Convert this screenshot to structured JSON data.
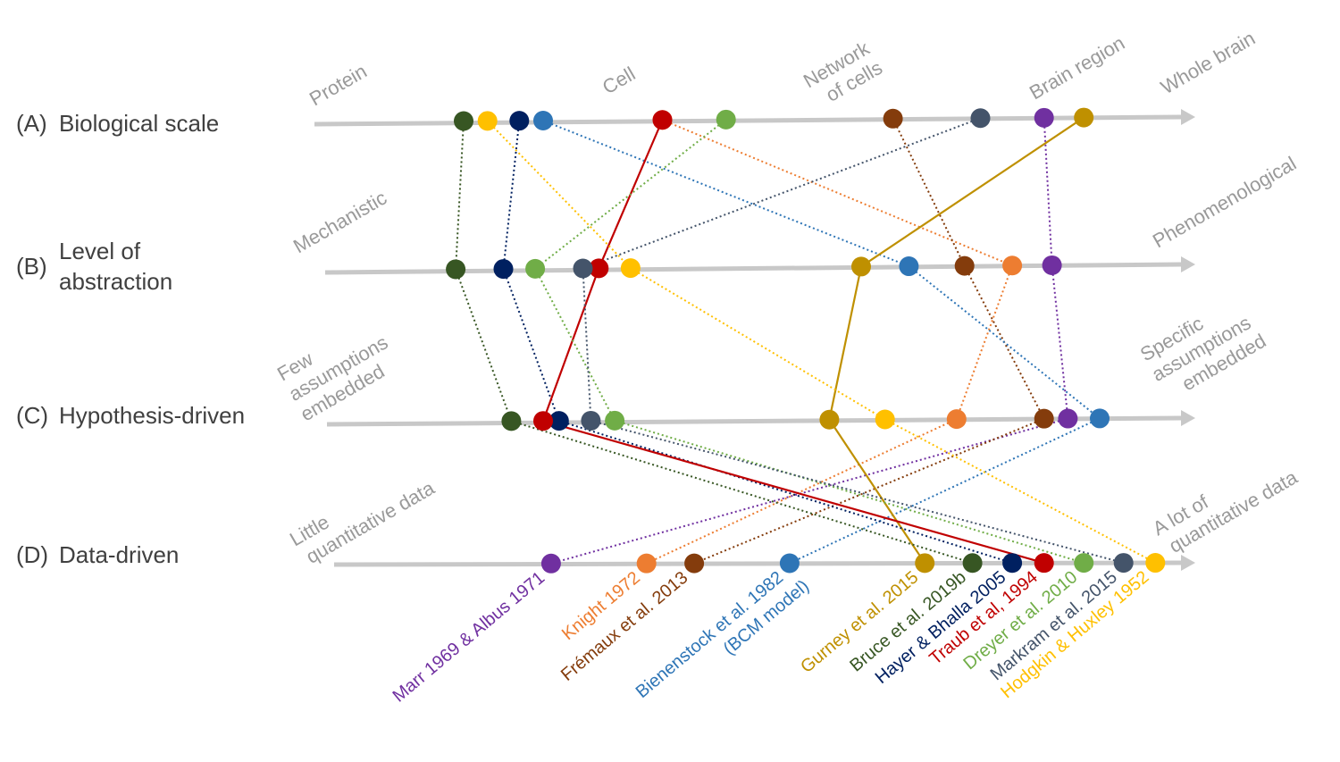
{
  "rows": [
    {
      "id": "A",
      "letter": "(A)",
      "title": [
        "Biological scale"
      ],
      "left_label": [
        "Protein"
      ],
      "right_label": [
        "Whole brain"
      ],
      "middle_labels": [
        {
          "lines": [
            "Cell"
          ]
        },
        {
          "lines": [
            "Network",
            "of cells"
          ]
        },
        {
          "lines": [
            "Brain region"
          ]
        }
      ]
    },
    {
      "id": "B",
      "letter": "(B)",
      "title": [
        "Level of",
        "abstraction"
      ],
      "left_label": [
        "Mechanistic"
      ],
      "right_label": [
        "Phenomenological"
      ],
      "middle_labels": []
    },
    {
      "id": "C",
      "letter": "(C)",
      "title": [
        "Hypothesis-driven"
      ],
      "left_label": [
        "Few",
        "assumptions",
        "embedded"
      ],
      "right_label": [
        "Specific",
        "assumptions",
        "embedded"
      ],
      "middle_labels": []
    },
    {
      "id": "D",
      "letter": "(D)",
      "title": [
        "Data-driven"
      ],
      "left_label": [
        "Little",
        "quantitative data"
      ],
      "right_label": [
        "A lot of",
        "quantitative data"
      ],
      "middle_labels": []
    }
  ],
  "models": [
    {
      "id": "marr",
      "label": [
        "Marr 1969 & Albus 1971"
      ],
      "color": "#7030a0",
      "style": "dotted",
      "scale": {
        "A": 0.83,
        "B": 0.84,
        "C": 0.86,
        "D": 0.21
      }
    },
    {
      "id": "knight",
      "label": [
        "Knight 1972"
      ],
      "color": "#ed7d31",
      "style": "dotted",
      "scale": {
        "A": 0.35,
        "B": 0.79,
        "C": 0.72,
        "D": 0.33
      }
    },
    {
      "id": "fremaux",
      "label": [
        "Frémaux et al. 2013"
      ],
      "color": "#843c0c",
      "style": "dotted",
      "scale": {
        "A": 0.64,
        "B": 0.73,
        "C": 0.83,
        "D": 0.39
      }
    },
    {
      "id": "bienenstock",
      "label": [
        "Bienenstock et al. 1982",
        "(BCM model)"
      ],
      "color": "#2e75b6",
      "style": "dotted",
      "scale": {
        "A": 0.2,
        "B": 0.66,
        "C": 0.9,
        "D": 0.51
      }
    },
    {
      "id": "gurney",
      "label": [
        "Gurney et al. 2015"
      ],
      "color": "#bf9000",
      "style": "solid",
      "scale": {
        "A": 0.88,
        "B": 0.6,
        "C": 0.56,
        "D": 0.68
      }
    },
    {
      "id": "bruce",
      "label": [
        "Bruce et al. 2019b"
      ],
      "color": "#375623",
      "style": "dotted",
      "scale": {
        "A": 0.1,
        "B": 0.09,
        "C": 0.16,
        "D": 0.74
      }
    },
    {
      "id": "hayer",
      "label": [
        "Hayer & Bhalla 2005"
      ],
      "color": "#002060",
      "style": "dotted",
      "scale": {
        "A": 0.17,
        "B": 0.15,
        "C": 0.22,
        "D": 0.79
      }
    },
    {
      "id": "traub",
      "label": [
        "Traub et al, 1994"
      ],
      "color": "#c00000",
      "style": "solid",
      "scale": {
        "A": 0.35,
        "B": 0.27,
        "C": 0.2,
        "D": 0.83
      }
    },
    {
      "id": "dreyer",
      "label": [
        "Dreyer et al. 2010"
      ],
      "color": "#70ad47",
      "style": "dotted",
      "scale": {
        "A": 0.43,
        "B": 0.19,
        "C": 0.29,
        "D": 0.88
      }
    },
    {
      "id": "markram",
      "label": [
        "Markram et al. 2015"
      ],
      "color": "#44546a",
      "style": "dotted",
      "scale": {
        "A": 0.75,
        "B": 0.25,
        "C": 0.26,
        "D": 0.93
      }
    },
    {
      "id": "hodgkin",
      "label": [
        "Hodgkin & Huxley 1952"
      ],
      "color": "#ffc000",
      "style": "dotted",
      "scale": {
        "A": 0.13,
        "B": 0.31,
        "C": 0.63,
        "D": 0.97
      }
    }
  ]
}
